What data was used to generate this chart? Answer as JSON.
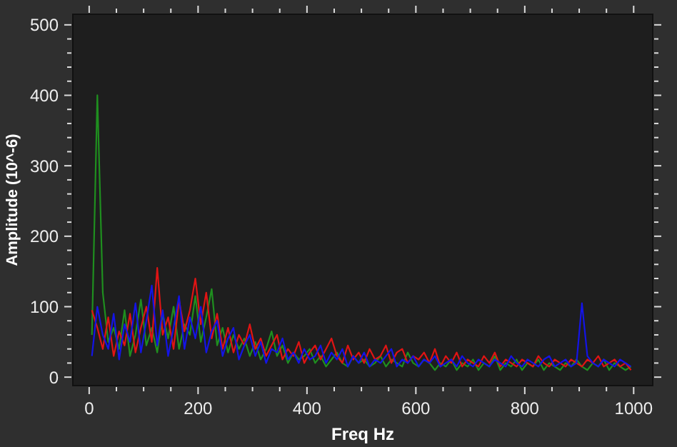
{
  "chart_data": {
    "type": "line",
    "xlabel": "Freq Hz",
    "ylabel": "Amplitude (10^-6)",
    "xlim": [
      -30,
      1035
    ],
    "ylim": [
      -12,
      515
    ],
    "xticks": [
      0,
      {
        "value": 50,
        "label": null
      },
      {
        "value": 100,
        "label": null
      },
      {
        "value": 150,
        "label": null
      },
      200,
      {
        "value": 250,
        "label": null
      },
      {
        "value": 300,
        "label": null
      },
      {
        "value": 350,
        "label": null
      },
      400,
      {
        "value": 450,
        "label": null
      },
      {
        "value": 500,
        "label": null
      },
      {
        "value": 550,
        "label": null
      },
      600,
      {
        "value": 650,
        "label": null
      },
      {
        "value": 700,
        "label": null
      },
      {
        "value": 750,
        "label": null
      },
      800,
      {
        "value": 850,
        "label": null
      },
      {
        "value": 900,
        "label": null
      },
      {
        "value": 950,
        "label": null
      },
      1000
    ],
    "yticks": [
      0,
      {
        "value": 20,
        "label": null
      },
      {
        "value": 40,
        "label": null
      },
      {
        "value": 60,
        "label": null
      },
      {
        "value": 80,
        "label": null
      },
      100,
      {
        "value": 120,
        "label": null
      },
      {
        "value": 140,
        "label": null
      },
      {
        "value": 160,
        "label": null
      },
      {
        "value": 180,
        "label": null
      },
      200,
      {
        "value": 220,
        "label": null
      },
      {
        "value": 240,
        "label": null
      },
      {
        "value": 260,
        "label": null
      },
      {
        "value": 280,
        "label": null
      },
      300,
      {
        "value": 320,
        "label": null
      },
      {
        "value": 340,
        "label": null
      },
      {
        "value": 360,
        "label": null
      },
      {
        "value": 380,
        "label": null
      },
      400,
      {
        "value": 420,
        "label": null
      },
      {
        "value": 440,
        "label": null
      },
      {
        "value": 460,
        "label": null
      },
      {
        "value": 480,
        "label": null
      },
      500
    ],
    "grid": false,
    "marker": "none",
    "line_style": "solid",
    "x": [
      5,
      15,
      25,
      35,
      45,
      55,
      65,
      75,
      85,
      95,
      105,
      115,
      125,
      135,
      145,
      155,
      165,
      175,
      185,
      195,
      205,
      215,
      225,
      235,
      245,
      255,
      265,
      275,
      285,
      295,
      305,
      315,
      325,
      335,
      345,
      355,
      365,
      375,
      385,
      395,
      405,
      415,
      425,
      435,
      445,
      455,
      465,
      475,
      485,
      495,
      505,
      515,
      525,
      535,
      545,
      555,
      565,
      575,
      585,
      595,
      605,
      615,
      625,
      635,
      645,
      655,
      665,
      675,
      685,
      695,
      705,
      715,
      725,
      735,
      745,
      755,
      765,
      775,
      785,
      795,
      805,
      815,
      825,
      835,
      845,
      855,
      865,
      875,
      885,
      895,
      905,
      915,
      925,
      935,
      945,
      955,
      965,
      975,
      985,
      995
    ],
    "series": [
      {
        "color": "#1f8f1f",
        "values": [
          60,
          400,
          120,
          50,
          70,
          40,
          95,
          30,
          60,
          110,
          45,
          70,
          35,
          90,
          55,
          100,
          40,
          75,
          60,
          115,
          50,
          85,
          125,
          45,
          70,
          35,
          60,
          40,
          55,
          30,
          50,
          25,
          40,
          65,
          30,
          45,
          20,
          35,
          25,
          30,
          40,
          20,
          30,
          15,
          25,
          35,
          20,
          15,
          30,
          20,
          25,
          15,
          20,
          30,
          15,
          25,
          20,
          15,
          35,
          20,
          15,
          25,
          20,
          10,
          20,
          15,
          25,
          10,
          20,
          15,
          25,
          10,
          20,
          15,
          30,
          10,
          20,
          15,
          25,
          10,
          20,
          15,
          25,
          10,
          20,
          15,
          10,
          20,
          15,
          25,
          15,
          10,
          20,
          15,
          25,
          10,
          20,
          15,
          10,
          15
        ]
      },
      {
        "color": "#e01414",
        "values": [
          95,
          70,
          40,
          85,
          30,
          65,
          45,
          90,
          35,
          70,
          100,
          50,
          155,
          60,
          85,
          40,
          110,
          65,
          95,
          140,
          75,
          120,
          55,
          90,
          40,
          70,
          35,
          60,
          45,
          75,
          40,
          55,
          30,
          45,
          60,
          25,
          40,
          30,
          50,
          20,
          35,
          45,
          25,
          40,
          55,
          30,
          20,
          45,
          25,
          35,
          20,
          40,
          25,
          30,
          45,
          20,
          35,
          40,
          20,
          30,
          25,
          35,
          20,
          40,
          15,
          30,
          20,
          35,
          15,
          25,
          20,
          15,
          30,
          20,
          35,
          15,
          25,
          20,
          15,
          25,
          20,
          15,
          30,
          20,
          15,
          25,
          20,
          15,
          25,
          20,
          15,
          25,
          20,
          30,
          15,
          20,
          25,
          15,
          20,
          10
        ]
      },
      {
        "color": "#1414e6",
        "values": [
          30,
          100,
          60,
          40,
          90,
          25,
          75,
          50,
          105,
          35,
          80,
          130,
          45,
          95,
          30,
          70,
          115,
          40,
          85,
          55,
          100,
          35,
          65,
          80,
          30,
          55,
          70,
          25,
          45,
          60,
          30,
          50,
          20,
          40,
          35,
          55,
          25,
          35,
          20,
          40,
          25,
          30,
          45,
          20,
          35,
          25,
          40,
          15,
          30,
          20,
          35,
          15,
          25,
          20,
          30,
          40,
          15,
          25,
          20,
          30,
          15,
          25,
          20,
          30,
          15,
          20,
          25,
          15,
          30,
          20,
          15,
          25,
          20,
          15,
          25,
          20,
          15,
          30,
          20,
          15,
          25,
          20,
          15,
          25,
          30,
          15,
          20,
          25,
          15,
          20,
          105,
          30,
          20,
          15,
          25,
          20,
          15,
          25,
          20,
          15
        ]
      }
    ]
  }
}
